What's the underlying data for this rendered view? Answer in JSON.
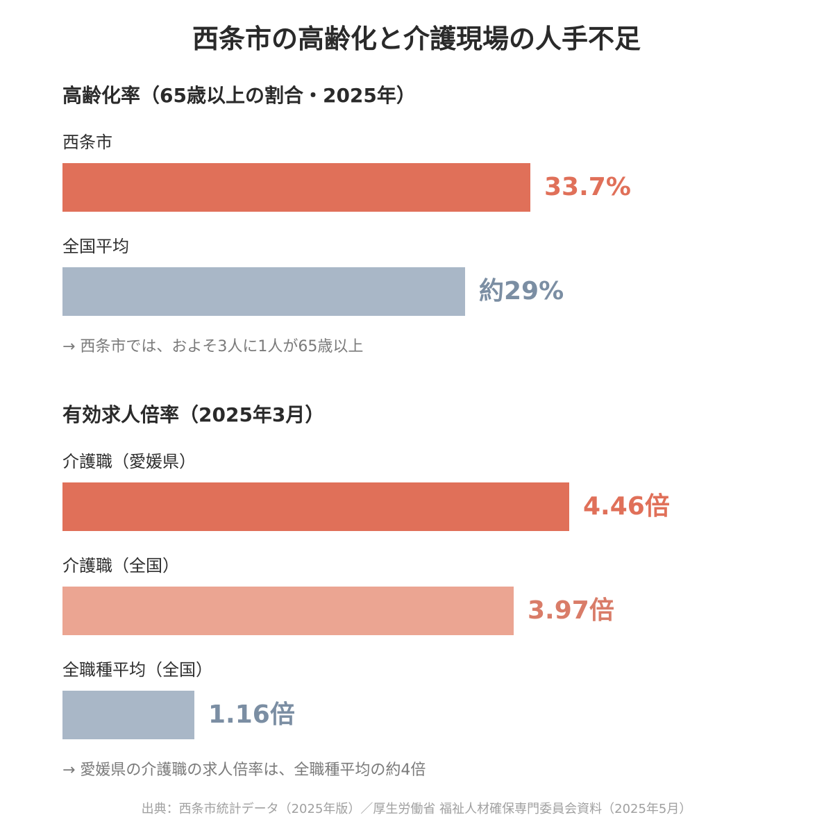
{
  "title": "西条市の高齢化と介護現場の人手不足",
  "colors": {
    "accent": "#e07059",
    "accent_light": "#eba592",
    "neutral": "#a9b7c7",
    "accent_text": "#e07059",
    "light_text": "#d97c68",
    "neutral_text": "#7b8ea3"
  },
  "chart_data": [
    {
      "type": "bar",
      "orientation": "horizontal",
      "title": "高齢化率（65歳以上の割合・2025年）",
      "categories": [
        "西条市",
        "全国平均"
      ],
      "values": [
        33.7,
        29
      ],
      "value_labels": [
        "33.7%",
        "約29%"
      ],
      "unit": "%",
      "xlim": [
        0,
        45
      ],
      "note": "→ 西条市では、およそ3人に1人が65歳以上"
    },
    {
      "type": "bar",
      "orientation": "horizontal",
      "title": "有効求人倍率（2025年3月）",
      "categories": [
        "介護職（愛媛県）",
        "介護職（全国）",
        "全職種平均（全国）"
      ],
      "values": [
        4.46,
        3.97,
        1.16
      ],
      "value_labels": [
        "4.46倍",
        "3.97倍",
        "1.16倍"
      ],
      "unit": "倍",
      "xlim": [
        0,
        5.5
      ],
      "note": "→ 愛媛県の介護職の求人倍率は、全職種平均の約4倍"
    }
  ],
  "source": "出典：西条市統計データ（2025年版）／厚生労働省 福祉人材確保専門委員会資料（2025年5月）"
}
